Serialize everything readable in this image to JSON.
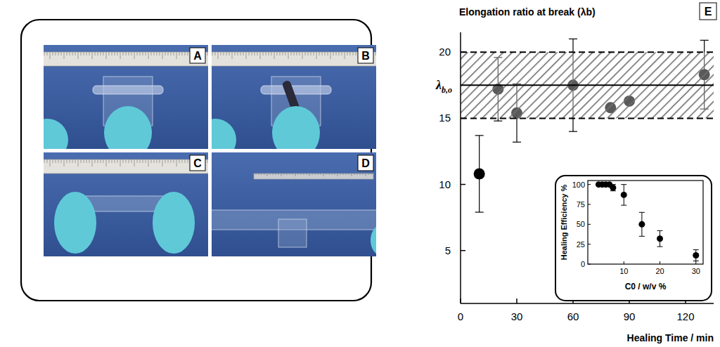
{
  "photo_panels": {
    "labels": [
      "A",
      "B",
      "C",
      "D"
    ]
  },
  "chart_data": [
    {
      "type": "scatter",
      "panel": "E",
      "y_label": "Elongation ratio at break (λb)",
      "x_label": "Healing Time / min",
      "x": [
        10,
        20,
        30,
        60,
        80,
        90,
        130
      ],
      "values": [
        10.8,
        17.2,
        15.4,
        17.5,
        15.8,
        16.3,
        18.3
      ],
      "errors": [
        2.9,
        2.4,
        2.2,
        3.5,
        null,
        null,
        2.6
      ],
      "color": "#000000",
      "marker": "circle",
      "xlim": [
        0,
        135
      ],
      "ylim": [
        1,
        21.5
      ],
      "xticks": [
        0,
        30,
        60,
        90,
        120
      ],
      "yticks": [
        5,
        10,
        15,
        20
      ],
      "reference": {
        "label": "λb,o",
        "value": 17.5,
        "band": [
          15,
          20
        ]
      }
    },
    {
      "type": "scatter",
      "y_label": "Healing Efficiency %",
      "x_label": "C0 / w/v %",
      "x": [
        3,
        4,
        5,
        6,
        7,
        10,
        15,
        20,
        30
      ],
      "values": [
        100,
        100,
        100,
        100,
        96,
        87,
        50,
        32,
        11
      ],
      "errors": [
        null,
        null,
        null,
        null,
        4,
        13,
        15,
        10,
        7
      ],
      "color": "#000000",
      "marker": "circle",
      "xlim": [
        0,
        32
      ],
      "ylim": [
        0,
        105
      ],
      "xticks": [
        10,
        20,
        30
      ],
      "yticks": [
        0,
        25,
        50,
        75,
        100
      ]
    }
  ]
}
